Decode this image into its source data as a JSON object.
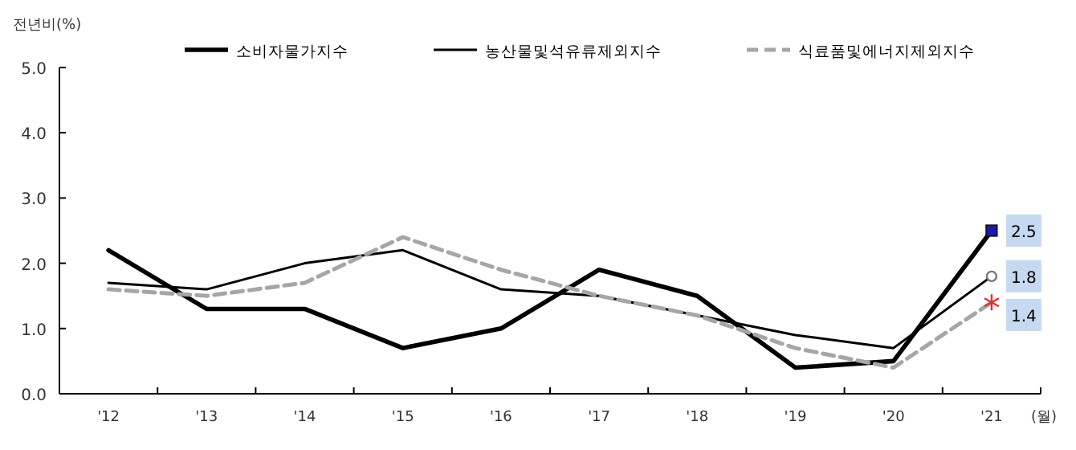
{
  "chart_data": {
    "type": "line",
    "ylabel": "전년비(%)",
    "xlabel": "(월)",
    "categories": [
      "'12",
      "'13",
      "'14",
      "'15",
      "'16",
      "'17",
      "'18",
      "'19",
      "'20",
      "'21"
    ],
    "series": [
      {
        "name": "소비자물가지수",
        "color": "#000000",
        "line_style": "solid",
        "colors": [
          null,
          null,
          null,
          null,
          null,
          null,
          null,
          null,
          null,
          "#1a1aa6"
        ],
        "values": [
          2.2,
          1.3,
          1.3,
          0.7,
          1.0,
          1.9,
          1.5,
          0.4,
          0.5,
          2.5
        ],
        "value_labels": [
          null,
          null,
          null,
          null,
          null,
          null,
          null,
          null,
          null,
          "2.5"
        ]
      },
      {
        "name": "농산물및석유류제외지수",
        "color": "#000000",
        "line_style": "solid",
        "colors": [
          null,
          null,
          null,
          null,
          null,
          null,
          null,
          null,
          null,
          "#777777"
        ],
        "values": [
          1.7,
          1.6,
          2.0,
          2.2,
          1.6,
          1.5,
          1.2,
          0.9,
          0.7,
          1.8
        ],
        "value_labels": [
          null,
          null,
          null,
          null,
          null,
          null,
          null,
          null,
          null,
          "1.8"
        ]
      },
      {
        "name": "식료품및에너지제외지수",
        "color": "#a6a6a6",
        "line_style": "dashed",
        "colors": [
          null,
          null,
          null,
          null,
          null,
          null,
          null,
          null,
          null,
          "#e03030"
        ],
        "values": [
          1.6,
          1.5,
          1.7,
          2.4,
          1.9,
          1.5,
          1.2,
          0.7,
          0.4,
          1.4
        ],
        "value_labels": [
          null,
          null,
          null,
          null,
          null,
          null,
          null,
          null,
          null,
          "1.4"
        ]
      }
    ],
    "ylim": [
      0,
      5
    ],
    "yticks": [
      {
        "value": 0,
        "label": "0.0"
      },
      {
        "value": 1,
        "label": "1.0"
      },
      {
        "value": 2,
        "label": "2.0"
      },
      {
        "value": 3,
        "label": "3.0"
      },
      {
        "value": 4,
        "label": "4.0"
      },
      {
        "value": 5,
        "label": "5.0"
      }
    ],
    "grid": false,
    "legend": "top"
  }
}
